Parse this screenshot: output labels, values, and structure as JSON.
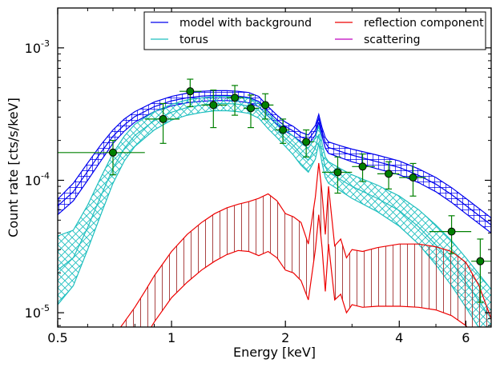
{
  "chart_data": {
    "type": "line",
    "title": "",
    "xlabel": "Energy [keV]",
    "ylabel": "Count rate [cts/s/keV]",
    "xscale": "log",
    "yscale": "log",
    "xlim": [
      0.5,
      7.0
    ],
    "ylim": [
      7.8e-06,
      0.002
    ],
    "grid": false,
    "legend_position": "top-right",
    "x_ticks": [
      {
        "value": 0.5,
        "label": "0.5"
      },
      {
        "value": 1,
        "label": "1"
      },
      {
        "value": 2,
        "label": "2"
      },
      {
        "value": 4,
        "label": "4"
      },
      {
        "value": 6,
        "label": "6"
      }
    ],
    "y_ticks": [
      {
        "value": 1e-05,
        "label": "10",
        "exp": "-5"
      },
      {
        "value": 0.0001,
        "label": "10",
        "exp": "-4"
      },
      {
        "value": 0.001,
        "label": "10",
        "exp": "-3"
      }
    ],
    "legend": [
      {
        "label": "model with background",
        "color": "#0000ee"
      },
      {
        "label": "torus",
        "color": "#1fbfbf"
      },
      {
        "label": "reflection component",
        "color": "#ee0000"
      },
      {
        "label": "scattering",
        "color": "#bf00bf"
      }
    ],
    "series": [
      {
        "name": "model with background",
        "color": "#0000ee",
        "hatch": "horizontal-grid",
        "x": [
          0.5,
          0.55,
          0.6,
          0.65,
          0.7,
          0.75,
          0.8,
          0.9,
          1.0,
          1.1,
          1.2,
          1.3,
          1.4,
          1.5,
          1.6,
          1.7,
          1.8,
          1.9,
          2.0,
          2.1,
          2.2,
          2.3,
          2.4,
          2.45,
          2.5,
          2.55,
          2.6,
          2.8,
          3.0,
          3.5,
          4.0,
          4.5,
          5.0,
          5.5,
          6.0,
          7.0
        ],
        "upper": [
          7.2e-05,
          9.5e-05,
          0.000135,
          0.000185,
          0.00024,
          0.00029,
          0.00033,
          0.00039,
          0.00043,
          0.000455,
          0.00047,
          0.000475,
          0.000475,
          0.00047,
          0.00046,
          0.00043,
          0.00036,
          0.00031,
          0.000275,
          0.000255,
          0.00023,
          0.00022,
          0.00026,
          0.000315,
          0.00025,
          0.00021,
          0.000195,
          0.000182,
          0.000172,
          0.000155,
          0.00014,
          0.000122,
          0.000105,
          8.8e-05,
          7.3e-05,
          5.2e-05
        ],
        "lower": [
          5.5e-05,
          7e-05,
          0.0001,
          0.00014,
          0.00019,
          0.000235,
          0.000275,
          0.00033,
          0.000365,
          0.000385,
          0.000395,
          0.0004,
          0.0004,
          0.000395,
          0.000385,
          0.00036,
          0.000305,
          0.000265,
          0.000235,
          0.000215,
          0.000195,
          0.000185,
          0.00022,
          0.000275,
          0.000215,
          0.000175,
          0.00016,
          0.000148,
          0.000138,
          0.000122,
          0.00011,
          9.6e-05,
          8.2e-05,
          6.8e-05,
          5.6e-05,
          4e-05
        ],
        "median": [
          6.4e-05,
          8.2e-05,
          0.000117,
          0.000162,
          0.000215,
          0.000262,
          0.000303,
          0.00036,
          0.000398,
          0.00042,
          0.000432,
          0.000437,
          0.000437,
          0.000432,
          0.000422,
          0.000395,
          0.000332,
          0.000287,
          0.000255,
          0.000235,
          0.000212,
          0.000202,
          0.00024,
          0.000295,
          0.000232,
          0.000192,
          0.000177,
          0.000165,
          0.000155,
          0.000138,
          0.000125,
          0.000109,
          9.35e-05,
          7.8e-05,
          6.45e-05,
          4.6e-05
        ]
      },
      {
        "name": "torus",
        "color": "#1fbfbf",
        "hatch": "diagonal-cross",
        "x": [
          0.5,
          0.55,
          0.6,
          0.65,
          0.7,
          0.75,
          0.8,
          0.9,
          1.0,
          1.1,
          1.2,
          1.3,
          1.4,
          1.5,
          1.6,
          1.7,
          1.8,
          1.9,
          2.0,
          2.1,
          2.2,
          2.3,
          2.4,
          2.45,
          2.5,
          2.55,
          2.6,
          2.8,
          3.0,
          3.5,
          4.0,
          4.5,
          5.0,
          5.5,
          6.0,
          7.0
        ],
        "upper": [
          3.8e-05,
          4.2e-05,
          6.5e-05,
          0.000105,
          0.00016,
          0.000215,
          0.000265,
          0.00033,
          0.000375,
          0.000405,
          0.00042,
          0.00043,
          0.00043,
          0.000425,
          0.000415,
          0.000385,
          0.00032,
          0.000275,
          0.00024,
          0.000215,
          0.00019,
          0.000175,
          0.00021,
          0.00026,
          0.00019,
          0.00015,
          0.000138,
          0.000122,
          0.00011,
          9.2e-05,
          7.6e-05,
          6e-05,
          4.6e-05,
          3.5e-05,
          2.6e-05,
          1.5e-05
        ],
        "lower": [
          1.15e-05,
          1.6e-05,
          3e-05,
          5.5e-05,
          9.5e-05,
          0.00014,
          0.00018,
          0.00024,
          0.000285,
          0.00031,
          0.000325,
          0.000335,
          0.000335,
          0.00033,
          0.00032,
          0.000295,
          0.000245,
          0.00021,
          0.00018,
          0.000155,
          0.00013,
          0.000115,
          0.000145,
          0.00019,
          0.000135,
          0.000105,
          9.5e-05,
          8.3e-05,
          7.3e-05,
          5.8e-05,
          4.5e-05,
          3.3e-05,
          2.3e-05,
          1.6e-05,
          1.1e-05,
          5.5e-06
        ],
        "median": [
          2.1e-05,
          2.6e-05,
          4.4e-05,
          7.6e-05,
          0.000123,
          0.000174,
          0.000218,
          0.000282,
          0.000327,
          0.000355,
          0.00037,
          0.00038,
          0.00038,
          0.000375,
          0.000364,
          0.000337,
          0.00028,
          0.00024,
          0.000208,
          0.000183,
          0.000157,
          0.000142,
          0.000175,
          0.000222,
          0.00016,
          0.000126,
          0.000115,
          0.000101,
          9e-05,
          7.3e-05,
          5.9e-05,
          4.45e-05,
          3.25e-05,
          2.4e-05,
          1.7e-05,
          9e-06
        ]
      },
      {
        "name": "reflection component",
        "color": "#ee0000",
        "hatch": "vertical",
        "hatch_color": "#a03030",
        "x": [
          0.7,
          0.75,
          0.8,
          0.85,
          0.9,
          1.0,
          1.1,
          1.2,
          1.3,
          1.4,
          1.5,
          1.6,
          1.7,
          1.8,
          1.9,
          2.0,
          2.1,
          2.2,
          2.3,
          2.4,
          2.45,
          2.5,
          2.55,
          2.6,
          2.7,
          2.8,
          2.9,
          3.0,
          3.2,
          3.5,
          4.0,
          4.5,
          5.0,
          5.5,
          6.0,
          6.5,
          7.0
        ],
        "upper": [
          6.5e-06,
          8.5e-06,
          1.1e-05,
          1.45e-05,
          1.9e-05,
          2.9e-05,
          3.9e-05,
          4.8e-05,
          5.6e-05,
          6.2e-05,
          6.6e-05,
          6.9e-05,
          7.3e-05,
          7.9e-05,
          7e-05,
          5.6e-05,
          5.3e-05,
          4.8e-05,
          3.3e-05,
          7.5e-05,
          0.000135,
          8e-05,
          3.9e-05,
          9e-05,
          3.2e-05,
          3.6e-05,
          2.6e-05,
          3e-05,
          2.9e-05,
          3.1e-05,
          3.3e-05,
          3.3e-05,
          3.15e-05,
          2.9e-05,
          2.4e-05,
          1.6e-05,
          9e-06
        ],
        "lower": [
          3.5e-06,
          4e-06,
          5e-06,
          6.5e-06,
          8.5e-06,
          1.3e-05,
          1.7e-05,
          2.1e-05,
          2.45e-05,
          2.75e-05,
          2.95e-05,
          2.9e-05,
          2.7e-05,
          2.9e-05,
          2.6e-05,
          2.1e-05,
          2e-05,
          1.75e-05,
          1.25e-05,
          3e-05,
          5.5e-05,
          3.1e-05,
          1.45e-05,
          3.3e-05,
          1.25e-05,
          1.38e-05,
          1e-05,
          1.15e-05,
          1.1e-05,
          1.12e-05,
          1.12e-05,
          1.1e-05,
          1.05e-05,
          9.5e-06,
          8e-06,
          6e-06,
          4.5e-06
        ]
      },
      {
        "name": "scattering",
        "color": "#bf00bf",
        "x": [],
        "y": []
      }
    ],
    "data_points": {
      "name": "data",
      "marker_color": "#008000",
      "points": [
        {
          "x": 0.7,
          "y": 0.000162,
          "xlo": 0.5,
          "xhi": 0.85,
          "ylo": 0.00011,
          "yhi": 0.0002
        },
        {
          "x": 0.95,
          "y": 0.00029,
          "xlo": 0.85,
          "xhi": 1.05,
          "ylo": 0.00019,
          "yhi": 0.00038
        },
        {
          "x": 1.12,
          "y": 0.00047,
          "xlo": 1.05,
          "xhi": 1.2,
          "ylo": 0.00036,
          "yhi": 0.00058
        },
        {
          "x": 1.29,
          "y": 0.00037,
          "xlo": 1.2,
          "xhi": 1.4,
          "ylo": 0.00025,
          "yhi": 0.00048
        },
        {
          "x": 1.47,
          "y": 0.00042,
          "xlo": 1.4,
          "xhi": 1.55,
          "ylo": 0.00031,
          "yhi": 0.00052
        },
        {
          "x": 1.62,
          "y": 0.00035,
          "xlo": 1.55,
          "xhi": 1.7,
          "ylo": 0.00025,
          "yhi": 0.00044
        },
        {
          "x": 1.77,
          "y": 0.00037,
          "xlo": 1.7,
          "xhi": 1.86,
          "ylo": 0.00029,
          "yhi": 0.00045
        },
        {
          "x": 1.97,
          "y": 0.00024,
          "xlo": 1.88,
          "xhi": 2.05,
          "ylo": 0.00019,
          "yhi": 0.00029
        },
        {
          "x": 2.27,
          "y": 0.000195,
          "xlo": 2.2,
          "xhi": 2.38,
          "ylo": 0.00015,
          "yhi": 0.00024
        },
        {
          "x": 2.75,
          "y": 0.000115,
          "xlo": 2.5,
          "xhi": 3.0,
          "ylo": 8e-05,
          "yhi": 0.00015
        },
        {
          "x": 3.2,
          "y": 0.000127,
          "xlo": 3.0,
          "xhi": 3.45,
          "ylo": 9.8e-05,
          "yhi": 0.000158
        },
        {
          "x": 3.75,
          "y": 0.000112,
          "xlo": 3.5,
          "xhi": 4.0,
          "ylo": 8.6e-05,
          "yhi": 0.000138
        },
        {
          "x": 4.35,
          "y": 0.000105,
          "xlo": 4.0,
          "xhi": 4.7,
          "ylo": 7.6e-05,
          "yhi": 0.000134
        },
        {
          "x": 5.5,
          "y": 4.1e-05,
          "xlo": 4.8,
          "xhi": 6.2,
          "ylo": 2.8e-05,
          "yhi": 5.4e-05
        },
        {
          "x": 6.55,
          "y": 2.45e-05,
          "xlo": 6.2,
          "xhi": 7.0,
          "ylo": 1.2e-05,
          "yhi": 3.6e-05
        }
      ]
    }
  }
}
